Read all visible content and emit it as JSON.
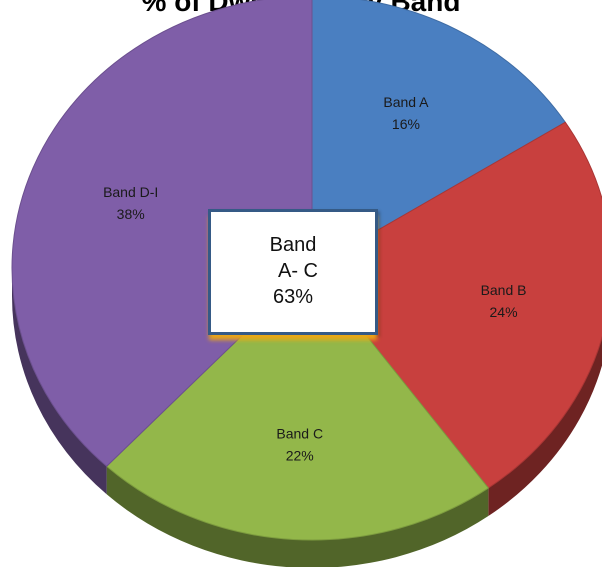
{
  "chart_data": {
    "type": "pie",
    "title": "% of Dwellings By Band",
    "slices": [
      {
        "label": "Band A",
        "value": 16,
        "display": "16%",
        "color": "#4a7fc1"
      },
      {
        "label": "Band B",
        "value": 24,
        "display": "24%",
        "color": "#c8403e"
      },
      {
        "label": "Band C",
        "value": 22,
        "display": "22%",
        "color": "#93b74a"
      },
      {
        "label": "Band D-I",
        "value": 38,
        "display": "38%",
        "color": "#7f5ea8"
      }
    ],
    "callout": {
      "line1": "Band",
      "line2": "A- C",
      "line3": "63%"
    },
    "style": "3d-pie"
  }
}
